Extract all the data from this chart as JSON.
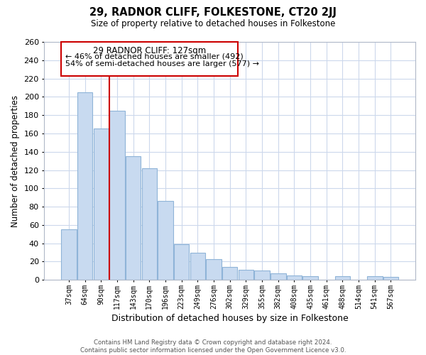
{
  "title_line1": "29, RADNOR CLIFF, FOLKESTONE, CT20 2JJ",
  "title_line2": "Size of property relative to detached houses in Folkestone",
  "xlabel": "Distribution of detached houses by size in Folkestone",
  "ylabel": "Number of detached properties",
  "categories": [
    "37sqm",
    "64sqm",
    "90sqm",
    "117sqm",
    "143sqm",
    "170sqm",
    "196sqm",
    "223sqm",
    "249sqm",
    "276sqm",
    "302sqm",
    "329sqm",
    "355sqm",
    "382sqm",
    "408sqm",
    "435sqm",
    "461sqm",
    "488sqm",
    "514sqm",
    "541sqm",
    "567sqm"
  ],
  "values": [
    55,
    205,
    165,
    185,
    135,
    122,
    86,
    39,
    30,
    23,
    14,
    11,
    10,
    7,
    5,
    4,
    0,
    4,
    0,
    4,
    3
  ],
  "bar_color": "#c8daf0",
  "bar_edge_color": "#8fb4d8",
  "vline_color": "#cc0000",
  "vline_bar_index": 3,
  "ylim": [
    0,
    260
  ],
  "yticks": [
    0,
    20,
    40,
    60,
    80,
    100,
    120,
    140,
    160,
    180,
    200,
    220,
    240,
    260
  ],
  "annotation_title": "29 RADNOR CLIFF: 127sqm",
  "annotation_line2": "← 46% of detached houses are smaller (492)",
  "annotation_line3": "54% of semi-detached houses are larger (577) →",
  "footer_line1": "Contains HM Land Registry data © Crown copyright and database right 2024.",
  "footer_line2": "Contains public sector information licensed under the Open Government Licence v3.0.",
  "background_color": "#ffffff",
  "grid_color": "#ccd8ec"
}
